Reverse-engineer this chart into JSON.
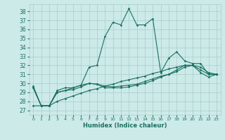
{
  "xlabel": "Humidex (Indice chaleur)",
  "xlim": [
    -0.5,
    23.5
  ],
  "ylim": [
    26.5,
    38.8
  ],
  "yticks": [
    27,
    28,
    29,
    30,
    31,
    32,
    33,
    34,
    35,
    36,
    37,
    38
  ],
  "xticks": [
    0,
    1,
    2,
    3,
    4,
    5,
    6,
    7,
    8,
    9,
    10,
    11,
    12,
    13,
    14,
    15,
    16,
    17,
    18,
    19,
    20,
    21,
    22,
    23
  ],
  "bg_color": "#cceae8",
  "grid_color": "#a8ccc8",
  "line_color": "#1a7060",
  "lines": [
    [
      29.7,
      27.5,
      27.5,
      29.2,
      29.5,
      29.5,
      29.8,
      31.8,
      32.0,
      35.2,
      36.8,
      36.5,
      38.3,
      36.5,
      36.5,
      37.2,
      31.2,
      32.8,
      33.5,
      32.5,
      32.2,
      32.2,
      31.0,
      31.0
    ],
    [
      29.5,
      27.5,
      27.5,
      29.0,
      29.2,
      29.3,
      29.6,
      30.0,
      29.9,
      29.7,
      29.6,
      29.7,
      29.8,
      29.9,
      30.2,
      30.5,
      30.8,
      31.0,
      31.3,
      31.8,
      32.0,
      31.2,
      30.7,
      31.0
    ],
    [
      29.5,
      27.5,
      27.5,
      29.0,
      29.2,
      29.5,
      29.8,
      30.0,
      29.9,
      29.5,
      29.5,
      29.5,
      29.6,
      29.8,
      30.0,
      30.3,
      30.7,
      31.0,
      31.5,
      32.0,
      32.0,
      31.5,
      31.0,
      31.0
    ],
    [
      27.5,
      27.5,
      27.5,
      28.0,
      28.3,
      28.6,
      28.9,
      29.2,
      29.4,
      29.7,
      29.9,
      30.2,
      30.4,
      30.6,
      30.8,
      31.1,
      31.3,
      31.6,
      31.8,
      32.0,
      32.0,
      31.8,
      31.2,
      31.0
    ]
  ]
}
